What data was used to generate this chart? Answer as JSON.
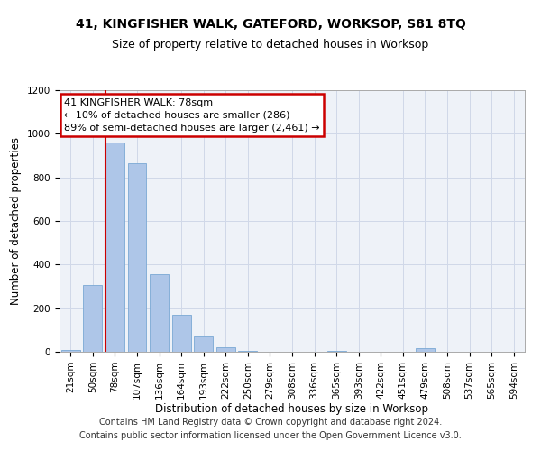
{
  "title": "41, KINGFISHER WALK, GATEFORD, WORKSOP, S81 8TQ",
  "subtitle": "Size of property relative to detached houses in Worksop",
  "xlabel": "Distribution of detached houses by size in Worksop",
  "ylabel": "Number of detached properties",
  "footer_line1": "Contains HM Land Registry data © Crown copyright and database right 2024.",
  "footer_line2": "Contains public sector information licensed under the Open Government Licence v3.0.",
  "annotation_title": "41 KINGFISHER WALK: 78sqm",
  "annotation_line1": "← 10% of detached houses are smaller (286)",
  "annotation_line2": "89% of semi-detached houses are larger (2,461) →",
  "bar_labels": [
    "21sqm",
    "50sqm",
    "78sqm",
    "107sqm",
    "136sqm",
    "164sqm",
    "193sqm",
    "222sqm",
    "250sqm",
    "279sqm",
    "308sqm",
    "336sqm",
    "365sqm",
    "393sqm",
    "422sqm",
    "451sqm",
    "479sqm",
    "508sqm",
    "537sqm",
    "565sqm",
    "594sqm"
  ],
  "bar_values": [
    10,
    305,
    960,
    865,
    355,
    170,
    70,
    22,
    5,
    2,
    2,
    2,
    5,
    0,
    0,
    0,
    15,
    0,
    0,
    0,
    0
  ],
  "bar_color": "#aec6e8",
  "bar_edge_color": "#7aa8d4",
  "redline_index": 2,
  "redline_color": "#cc0000",
  "annotation_box_color": "#cc0000",
  "ylim": [
    0,
    1200
  ],
  "yticks": [
    0,
    200,
    400,
    600,
    800,
    1000,
    1200
  ],
  "grid_color": "#d0d8e8",
  "bg_color": "#eef2f8",
  "title_fontsize": 10,
  "subtitle_fontsize": 9,
  "axis_label_fontsize": 8.5,
  "tick_fontsize": 7.5,
  "annotation_fontsize": 8,
  "footer_fontsize": 7
}
